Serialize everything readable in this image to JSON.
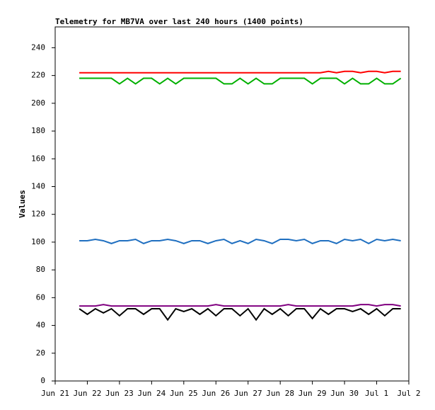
{
  "chart_data": {
    "type": "line",
    "title": "Telemetry for MB7VA over last 240 hours (1400 points)",
    "y_label": "Values",
    "xlim": [
      0,
      11
    ],
    "ylim": [
      0,
      255
    ],
    "xticks": [
      {
        "value": 0,
        "label": "Jun 21"
      },
      {
        "value": 1,
        "label": "Jun 22"
      },
      {
        "value": 2,
        "label": "Jun 23"
      },
      {
        "value": 3,
        "label": "Jun 24"
      },
      {
        "value": 4,
        "label": "Jun 25"
      },
      {
        "value": 5,
        "label": "Jun 26"
      },
      {
        "value": 6,
        "label": "Jun 27"
      },
      {
        "value": 7,
        "label": "Jun 28"
      },
      {
        "value": 8,
        "label": "Jun 29"
      },
      {
        "value": 9,
        "label": "Jun 30"
      },
      {
        "value": 10,
        "label": "Jul 1"
      },
      {
        "value": 11,
        "label": "Jul 2"
      }
    ],
    "yticks": [
      0,
      20,
      40,
      60,
      80,
      100,
      120,
      140,
      160,
      180,
      200,
      220,
      240
    ],
    "x": [
      0.75,
      1,
      1.25,
      1.5,
      1.75,
      2,
      2.25,
      2.5,
      2.75,
      3,
      3.25,
      3.5,
      3.75,
      4,
      4.25,
      4.5,
      4.75,
      5,
      5.25,
      5.5,
      5.75,
      6,
      6.25,
      6.5,
      6.75,
      7,
      7.25,
      7.5,
      7.75,
      8,
      8.25,
      8.5,
      8.75,
      9,
      9.25,
      9.5,
      9.75,
      10,
      10.25,
      10.5,
      10.75
    ],
    "series": [
      {
        "color": "#ff0000",
        "values": [
          222,
          222,
          222,
          222,
          222,
          222,
          222,
          222,
          222,
          222,
          222,
          222,
          222,
          222,
          222,
          222,
          222,
          222,
          222,
          222,
          222,
          222,
          222,
          222,
          222,
          222,
          222,
          222,
          222,
          222,
          222,
          223,
          222,
          223,
          223,
          222,
          223,
          223,
          222,
          223,
          223
        ]
      },
      {
        "color": "#00b000",
        "values": [
          218,
          218,
          218,
          218,
          218,
          214,
          218,
          214,
          218,
          218,
          214,
          218,
          214,
          218,
          218,
          218,
          218,
          218,
          214,
          214,
          218,
          214,
          218,
          214,
          214,
          218,
          218,
          218,
          218,
          214,
          218,
          218,
          218,
          214,
          218,
          214,
          214,
          218,
          214,
          214,
          218
        ]
      },
      {
        "color": "#1f6fc0",
        "values": [
          101,
          101,
          102,
          101,
          99,
          101,
          101,
          102,
          99,
          101,
          101,
          102,
          101,
          99,
          101,
          101,
          99,
          101,
          102,
          99,
          101,
          99,
          102,
          101,
          99,
          102,
          102,
          101,
          102,
          99,
          101,
          101,
          99,
          102,
          101,
          102,
          99,
          102,
          101,
          102,
          101
        ]
      },
      {
        "color": "#800080",
        "values": [
          54,
          54,
          54,
          55,
          54,
          54,
          54,
          54,
          54,
          54,
          54,
          54,
          54,
          54,
          54,
          54,
          54,
          55,
          54,
          54,
          54,
          54,
          54,
          54,
          54,
          54,
          55,
          54,
          54,
          54,
          54,
          54,
          54,
          54,
          54,
          55,
          55,
          54,
          55,
          55,
          54
        ]
      },
      {
        "color": "#000000",
        "values": [
          52,
          48,
          52,
          49,
          52,
          47,
          52,
          52,
          48,
          52,
          52,
          44,
          52,
          50,
          52,
          48,
          52,
          47,
          52,
          52,
          47,
          52,
          44,
          52,
          48,
          52,
          47,
          52,
          52,
          45,
          52,
          48,
          52,
          52,
          50,
          52,
          48,
          52,
          47,
          52,
          52
        ]
      }
    ]
  }
}
